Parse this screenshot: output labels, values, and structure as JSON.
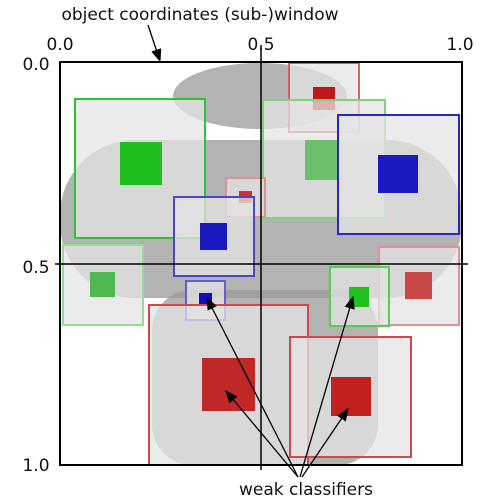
{
  "header": {
    "title": "object coordinates (sub-)window"
  },
  "axes": {
    "top": [
      "0.0",
      "0.5",
      "1.0"
    ],
    "left": [
      "0.0",
      "0.5",
      "1.0"
    ]
  },
  "annotation": "weak classifiers"
}
